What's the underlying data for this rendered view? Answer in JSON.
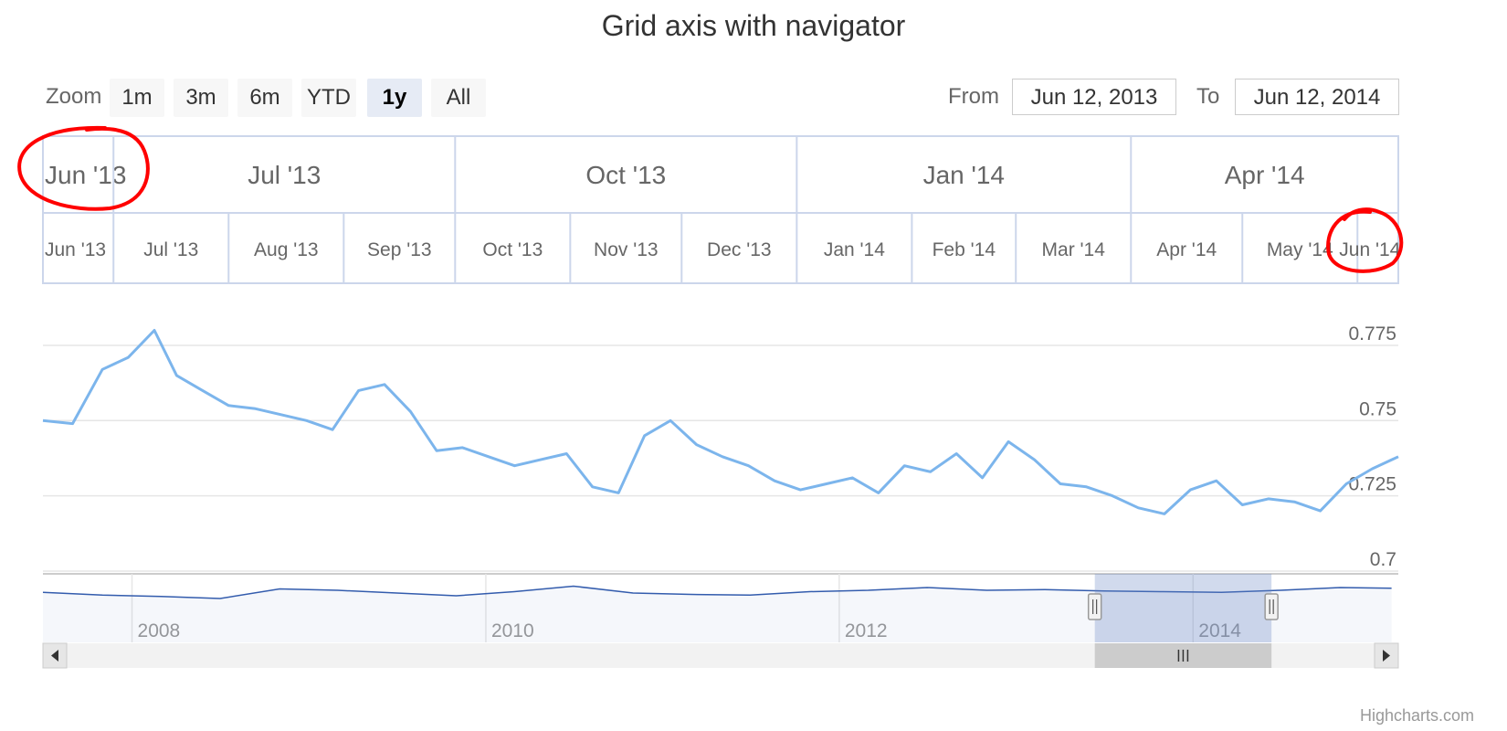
{
  "title": "Grid axis with navigator",
  "range_selector": {
    "zoom_label": "Zoom",
    "buttons": [
      "1m",
      "3m",
      "6m",
      "YTD",
      "1y",
      "All"
    ],
    "selected": "1y",
    "from_label": "From",
    "from_value": "Jun 12, 2013",
    "to_label": "To",
    "to_value": "Jun 12, 2014"
  },
  "credits": "Highcharts.com",
  "colors": {
    "series": "#7cb5ec",
    "navigator_series": "#335cad",
    "grid": "#e6e6e6",
    "grid_axis_border": "#ccd6eb",
    "annotation": "#ff0000",
    "navigator_mask": "rgba(102,133,194,0.3)"
  },
  "chart_data": {
    "type": "line",
    "title": "Grid axis with navigator",
    "x_range": [
      "2013-06-12",
      "2014-06-12"
    ],
    "ylim": [
      0.7,
      0.785
    ],
    "y_ticks": [
      "0.7",
      "0.725",
      "0.75",
      "0.775"
    ],
    "grid": true,
    "grid_axis": {
      "top_row": [
        "Jun '13",
        "Jul '13",
        "Oct '13",
        "Jan '14",
        "Apr '14"
      ],
      "bottom_row": [
        "Jun '13",
        "Jul '13",
        "Aug '13",
        "Sep '13",
        "Oct '13",
        "Nov '13",
        "Dec '13",
        "Jan '14",
        "Feb '14",
        "Mar '14",
        "Apr '14",
        "May '14",
        "Jun '14"
      ]
    },
    "series": [
      {
        "x": [
          "2013-06-12",
          "2013-06-20",
          "2013-06-28",
          "2013-07-05",
          "2013-07-12",
          "2013-07-18",
          "2013-07-25",
          "2013-08-01",
          "2013-08-08",
          "2013-08-15",
          "2013-08-22",
          "2013-08-29",
          "2013-09-05",
          "2013-09-12",
          "2013-09-19",
          "2013-09-26",
          "2013-10-03",
          "2013-10-10",
          "2013-10-17",
          "2013-10-24",
          "2013-10-31",
          "2013-11-07",
          "2013-11-14",
          "2013-11-21",
          "2013-11-28",
          "2013-12-05",
          "2013-12-12",
          "2013-12-19",
          "2013-12-26",
          "2014-01-02",
          "2014-01-09",
          "2014-01-16",
          "2014-01-23",
          "2014-01-30",
          "2014-02-06",
          "2014-02-13",
          "2014-02-20",
          "2014-02-27",
          "2014-03-06",
          "2014-03-13",
          "2014-03-20",
          "2014-03-27",
          "2014-04-03",
          "2014-04-10",
          "2014-04-17",
          "2014-04-24",
          "2014-05-01",
          "2014-05-08",
          "2014-05-15",
          "2014-05-22",
          "2014-05-29",
          "2014-06-05",
          "2014-06-12"
        ],
        "y": [
          0.75,
          0.749,
          0.767,
          0.771,
          0.78,
          0.765,
          0.76,
          0.755,
          0.754,
          0.752,
          0.75,
          0.747,
          0.76,
          0.762,
          0.753,
          0.74,
          0.741,
          0.738,
          0.735,
          0.737,
          0.739,
          0.728,
          0.726,
          0.745,
          0.75,
          0.742,
          0.738,
          0.735,
          0.73,
          0.727,
          0.729,
          0.731,
          0.726,
          0.735,
          0.733,
          0.739,
          0.731,
          0.743,
          0.737,
          0.729,
          0.728,
          0.725,
          0.721,
          0.719,
          0.727,
          0.73,
          0.722,
          0.724,
          0.723,
          0.72,
          0.729,
          0.734,
          0.738
        ]
      }
    ],
    "navigator": {
      "x_ticks": [
        "2008",
        "2010",
        "2012",
        "2014"
      ],
      "x_range": [
        "2007-07-01",
        "2015-03-01"
      ],
      "x": [
        "2007-07-01",
        "2007-11-01",
        "2008-03-01",
        "2008-07-01",
        "2008-11-01",
        "2009-03-01",
        "2009-07-01",
        "2009-11-01",
        "2010-03-01",
        "2010-07-01",
        "2010-11-01",
        "2011-03-01",
        "2011-07-01",
        "2011-11-01",
        "2012-03-01",
        "2012-07-01",
        "2012-11-01",
        "2013-03-01",
        "2013-07-01",
        "2013-11-01",
        "2014-03-01",
        "2014-07-01",
        "2014-11-01",
        "2015-02-15"
      ],
      "y": [
        0.73,
        0.69,
        0.67,
        0.64,
        0.78,
        0.76,
        0.72,
        0.68,
        0.74,
        0.82,
        0.72,
        0.7,
        0.69,
        0.74,
        0.76,
        0.8,
        0.76,
        0.77,
        0.75,
        0.74,
        0.73,
        0.76,
        0.8,
        0.79
      ],
      "selected_range": [
        "2013-06-12",
        "2014-06-12"
      ]
    }
  }
}
